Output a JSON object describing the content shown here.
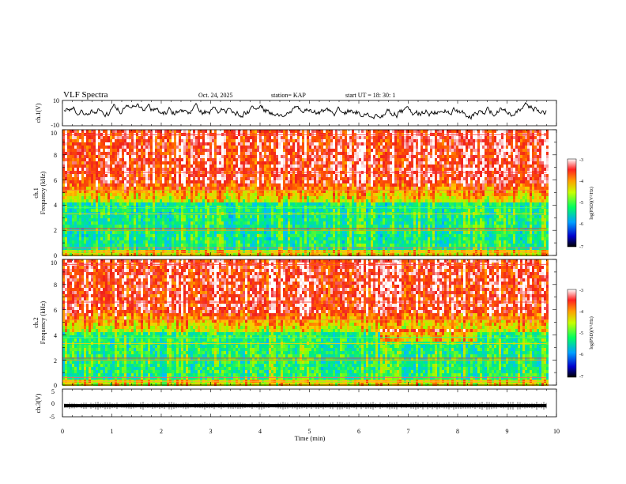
{
  "header": {
    "title": "VLF Spectra",
    "date": "Oct. 24, 2025",
    "station": "station= KAP",
    "start": "start  UT  =   18: 30: 1"
  },
  "chart_data": [
    {
      "type": "line",
      "name": "ch1-waveform",
      "ylabel": "ch.1(V)",
      "ylim": [
        -10,
        10
      ],
      "yticks": [
        "10",
        "-10"
      ],
      "xlim": [
        0,
        10
      ],
      "data_until_min": 9.8
    },
    {
      "type": "heatmap",
      "name": "ch1-spectrogram",
      "ylabel_line1": "ch.1",
      "ylabel_line2": "Frequency  (kHz)",
      "ylim": [
        0,
        10
      ],
      "yticks": [
        "0",
        "2",
        "4",
        "6",
        "8",
        "10"
      ],
      "xlim": [
        0,
        10
      ],
      "colorbar": {
        "ticks": [
          "-3",
          "-4",
          "-5",
          "-6",
          "-7"
        ],
        "range": [
          -7,
          -3
        ],
        "label": "log(PSD)(V²/Hz)"
      }
    },
    {
      "type": "heatmap",
      "name": "ch2-spectrogram",
      "ylabel_line1": "ch.2",
      "ylabel_line2": "Frequency  (kHz)",
      "ylim": [
        0,
        10
      ],
      "yticks": [
        "0",
        "2",
        "4",
        "6",
        "8",
        "10"
      ],
      "xlim": [
        0,
        10
      ],
      "colorbar": {
        "ticks": [
          "-3",
          "-4",
          "-5",
          "-6",
          "-7"
        ],
        "range": [
          -7,
          -3
        ],
        "label": "log(PSD)(V²/Hz)"
      }
    },
    {
      "type": "line",
      "name": "ch3-waveform",
      "ylabel": "ch.3(V)",
      "ylim": [
        -5,
        5
      ],
      "yticks": [
        "5",
        "0",
        "-5"
      ],
      "baseline_value": -1,
      "xlim": [
        0,
        10
      ],
      "data_until_min": 9.8
    }
  ],
  "xaxis": {
    "label": "Time  (min)",
    "ticks": [
      "0",
      "1",
      "2",
      "3",
      "4",
      "5",
      "6",
      "7",
      "8",
      "9",
      "10"
    ]
  },
  "colors": {
    "axis": "#000000",
    "background": "#ffffff"
  }
}
